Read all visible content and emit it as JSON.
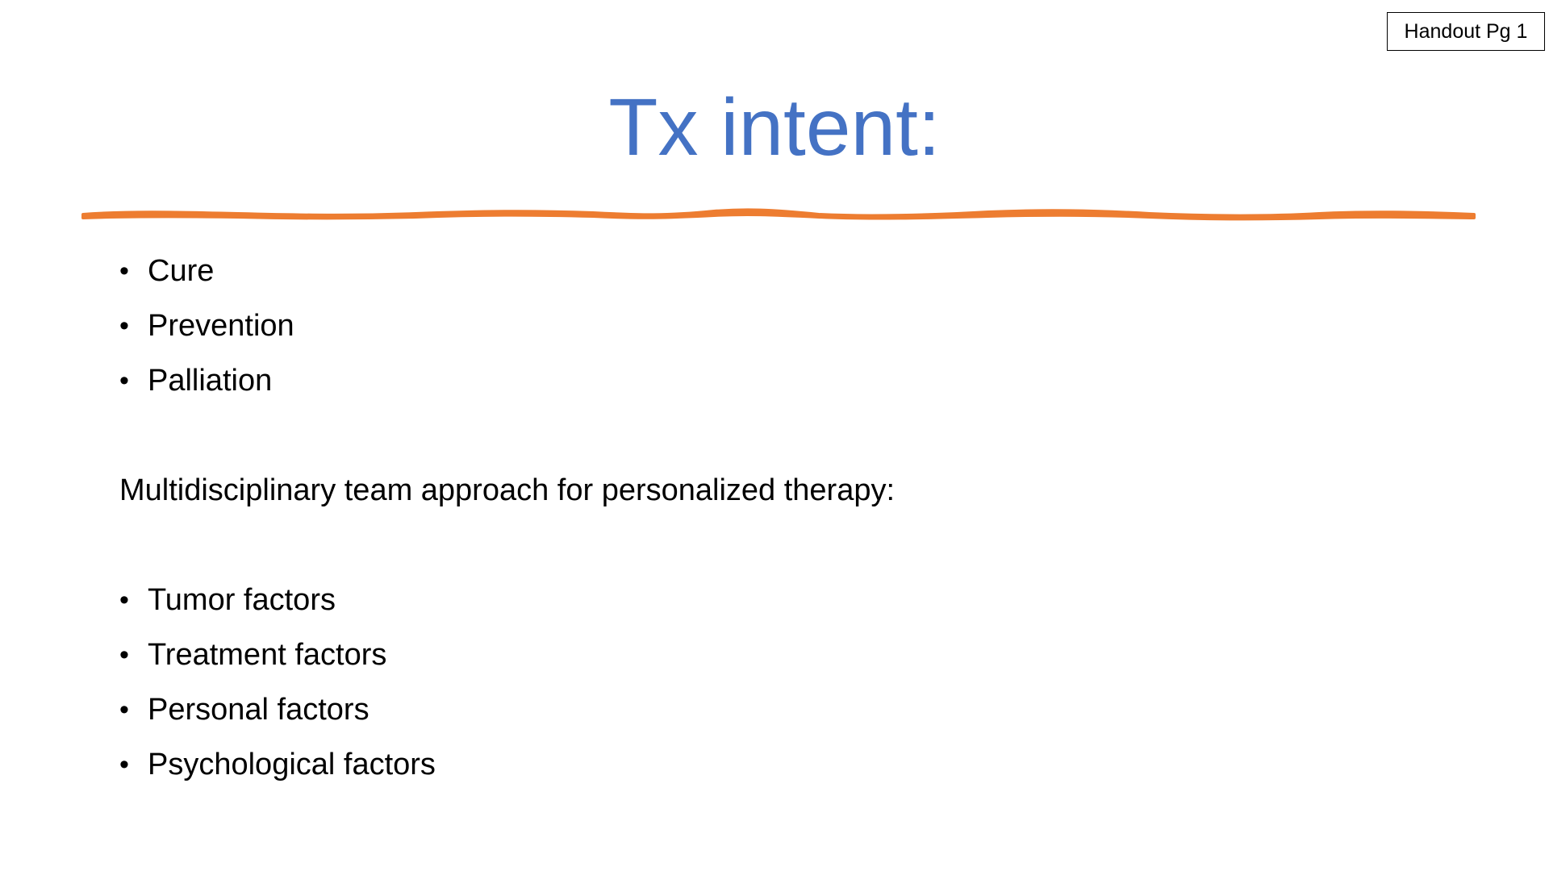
{
  "handout_label": "Handout Pg 1",
  "title": "Tx intent:",
  "colors": {
    "title": "#4472C4",
    "divider": "#ED7D31",
    "text": "#000000",
    "background": "#ffffff"
  },
  "intent_list": [
    {
      "bullet": "•",
      "text": "Cure"
    },
    {
      "bullet": "•",
      "text": "Prevention"
    },
    {
      "bullet": "•",
      "text": "Palliation"
    }
  ],
  "paragraph": "Multidisciplinary team approach for personalized therapy:",
  "factors_list": [
    {
      "bullet": "•",
      "text": "Tumor factors"
    },
    {
      "bullet": "•",
      "text": "Treatment factors"
    },
    {
      "bullet": "•",
      "text": "Personal factors"
    },
    {
      "bullet": "•",
      "text": "Psychological factors"
    }
  ]
}
